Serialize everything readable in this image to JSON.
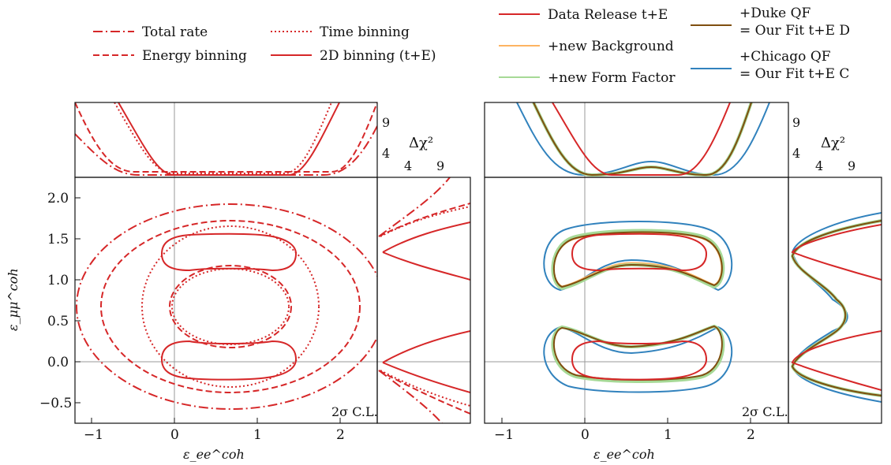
{
  "chart_data": [
    {
      "type": "line",
      "panel": "left",
      "annotation": "2σ C.L.",
      "xlabel": "ε_ee^coh",
      "ylabel": "ε_μμ^coh",
      "xlim": [
        -1.25,
        2.5
      ],
      "ylim": [
        -0.75,
        2.25
      ],
      "xticks": [
        "−1",
        "0",
        "1",
        "2"
      ],
      "yticks": [
        "−0.5",
        "0.0",
        "0.5",
        "1.0",
        "1.5",
        "2.0"
      ],
      "top_profile_ticks": [
        "4",
        "9"
      ],
      "side_profile_label": "Δχ²",
      "side_profile_ticks": [
        "4",
        "9"
      ],
      "legend": [
        {
          "name": "Total rate",
          "style": "dashdot"
        },
        {
          "name": "Time binning",
          "style": "dotted"
        },
        {
          "name": "Energy binning",
          "style": "dashed"
        },
        {
          "name": "2D binning (t+E)",
          "style": "solid"
        }
      ],
      "color": "#d62728",
      "series": [
        {
          "name": "Total rate",
          "shape": "ellipse",
          "center": [
            0.68,
            0.68
          ],
          "radii": [
            1.9,
            1.26
          ]
        },
        {
          "name": "Energy binning",
          "shape": "ellipse",
          "center": [
            0.68,
            0.68
          ],
          "radii": [
            1.58,
            1.05
          ]
        },
        {
          "name": "Energy binning",
          "shape": "ellipse",
          "center": [
            0.68,
            0.68
          ],
          "radii": [
            0.75,
            0.49
          ]
        },
        {
          "name": "Time binning",
          "shape": "ellipse",
          "center": [
            0.68,
            0.68
          ],
          "radii": [
            1.08,
            0.99
          ]
        },
        {
          "name": "Time binning",
          "shape": "ellipse",
          "center": [
            0.68,
            0.68
          ],
          "radii": [
            0.72,
            0.46
          ]
        },
        {
          "name": "2D binning (t+E)",
          "shape": "bean",
          "center": [
            0.68,
            1.38
          ],
          "half_width": 1.05,
          "y_range": [
            1.16,
            1.6
          ]
        },
        {
          "name": "2D binning (t+E)",
          "shape": "bean",
          "center": [
            0.68,
            -0.02
          ],
          "half_width": 1.05,
          "y_range": [
            -0.24,
            0.2
          ]
        }
      ]
    },
    {
      "type": "line",
      "panel": "right",
      "annotation": "2σ C.L.",
      "xlabel": "ε_ee^coh",
      "ylabel": "",
      "xlim": [
        -1.25,
        2.5
      ],
      "ylim": [
        -0.75,
        2.25
      ],
      "xticks": [
        "−1",
        "0",
        "1",
        "2"
      ],
      "yticks": [],
      "top_profile_ticks": [
        "4",
        "9"
      ],
      "side_profile_label": "Δχ²",
      "side_profile_ticks": [
        "4",
        "9"
      ],
      "legend": [
        {
          "name": "Data Release t+E",
          "color": "#d62728"
        },
        {
          "name": "+new Background",
          "color": "#fdb462"
        },
        {
          "name": "+new Form Factor",
          "color": "#a6d996"
        },
        {
          "name": "+Duke QF",
          "name2": "= Our Fit t+E D",
          "color": "#7f4f0f"
        },
        {
          "name": "+Chicago QF",
          "name2": "= Our Fit t+E C",
          "color": "#3182bd"
        }
      ],
      "series": [
        {
          "name": "Data Release t+E",
          "shape": "bean",
          "center": [
            0.68,
            1.38
          ],
          "half_width": 1.05,
          "y_range": [
            1.16,
            1.6
          ]
        },
        {
          "name": "Data Release t+E",
          "shape": "bean",
          "center": [
            0.68,
            -0.02
          ],
          "half_width": 1.05,
          "y_range": [
            -0.24,
            0.2
          ]
        },
        {
          "name": "+Duke QF",
          "shape": "band",
          "x_range": [
            -0.3,
            1.65
          ],
          "y_range": [
            0.9,
            1.61
          ]
        },
        {
          "name": "+Duke QF",
          "shape": "band",
          "x_range": [
            -0.3,
            1.65
          ],
          "y_range": [
            -0.2,
            0.46
          ]
        },
        {
          "name": "+Chicago QF",
          "shape": "band",
          "x_range": [
            -0.52,
            1.9
          ],
          "y_range": [
            0.88,
            1.74
          ]
        },
        {
          "name": "+Chicago QF",
          "shape": "band",
          "x_range": [
            -0.52,
            1.9
          ],
          "y_range": [
            -0.38,
            0.43
          ]
        }
      ]
    }
  ]
}
